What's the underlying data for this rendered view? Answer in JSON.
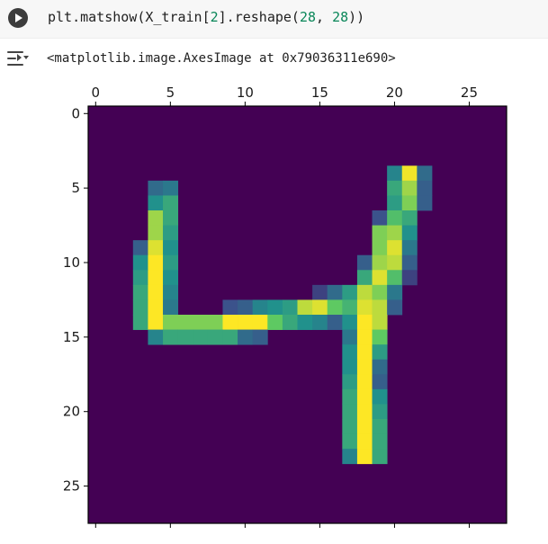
{
  "code_cell": {
    "func": "plt.matshow(X_train[",
    "index": "2",
    "mid": "].reshape(",
    "dim1": "28",
    "sep": ", ",
    "dim2": "28",
    "end": "))"
  },
  "output": {
    "text": "<matplotlib.image.AxesImage at 0x79036311e690>"
  },
  "colors": {
    "accent_number": "#098658",
    "colormap": "viridis"
  },
  "chart_data": {
    "type": "heatmap",
    "title": "",
    "xlabel": "",
    "ylabel": "",
    "xlim": [
      -0.5,
      27.5
    ],
    "ylim": [
      27.5,
      -0.5
    ],
    "x_ticks": [
      0,
      5,
      10,
      15,
      20,
      25
    ],
    "y_ticks": [
      0,
      5,
      10,
      15,
      20,
      25
    ],
    "x_tick_labels": [
      "0",
      "5",
      "10",
      "15",
      "20",
      "25"
    ],
    "y_tick_labels": [
      "0",
      "5",
      "10",
      "15",
      "20",
      "25"
    ],
    "x_axis_position": "top",
    "grid": false,
    "colormap": "viridis",
    "value_range": [
      0,
      1
    ],
    "rows": 28,
    "cols": 28,
    "pixels": [
      [
        4,
        20,
        0.45
      ],
      [
        4,
        21,
        0.98
      ],
      [
        4,
        22,
        0.35
      ],
      [
        5,
        4,
        0.35
      ],
      [
        5,
        5,
        0.4
      ],
      [
        5,
        20,
        0.6
      ],
      [
        5,
        21,
        0.85
      ],
      [
        5,
        22,
        0.3
      ],
      [
        6,
        4,
        0.5
      ],
      [
        6,
        5,
        0.6
      ],
      [
        6,
        20,
        0.55
      ],
      [
        6,
        21,
        0.8
      ],
      [
        6,
        22,
        0.3
      ],
      [
        7,
        4,
        0.85
      ],
      [
        7,
        5,
        0.6
      ],
      [
        7,
        19,
        0.25
      ],
      [
        7,
        20,
        0.7
      ],
      [
        7,
        21,
        0.6
      ],
      [
        8,
        4,
        0.85
      ],
      [
        8,
        5,
        0.55
      ],
      [
        8,
        19,
        0.8
      ],
      [
        8,
        20,
        0.85
      ],
      [
        8,
        21,
        0.5
      ],
      [
        9,
        3,
        0.3
      ],
      [
        9,
        4,
        0.95
      ],
      [
        9,
        5,
        0.5
      ],
      [
        9,
        19,
        0.8
      ],
      [
        9,
        20,
        0.95
      ],
      [
        9,
        21,
        0.4
      ],
      [
        10,
        3,
        0.5
      ],
      [
        10,
        4,
        1.0
      ],
      [
        10,
        5,
        0.55
      ],
      [
        10,
        18,
        0.3
      ],
      [
        10,
        19,
        0.85
      ],
      [
        10,
        20,
        0.9
      ],
      [
        10,
        21,
        0.3
      ],
      [
        11,
        3,
        0.55
      ],
      [
        11,
        4,
        1.0
      ],
      [
        11,
        5,
        0.5
      ],
      [
        11,
        18,
        0.6
      ],
      [
        11,
        19,
        0.95
      ],
      [
        11,
        20,
        0.7
      ],
      [
        11,
        21,
        0.2
      ],
      [
        12,
        3,
        0.6
      ],
      [
        12,
        4,
        1.0
      ],
      [
        12,
        5,
        0.45
      ],
      [
        12,
        15,
        0.2
      ],
      [
        12,
        16,
        0.35
      ],
      [
        12,
        17,
        0.55
      ],
      [
        12,
        18,
        0.9
      ],
      [
        12,
        19,
        0.8
      ],
      [
        12,
        20,
        0.4
      ],
      [
        13,
        3,
        0.6
      ],
      [
        13,
        4,
        1.0
      ],
      [
        13,
        5,
        0.4
      ],
      [
        13,
        9,
        0.25
      ],
      [
        13,
        10,
        0.3
      ],
      [
        13,
        11,
        0.45
      ],
      [
        13,
        12,
        0.5
      ],
      [
        13,
        13,
        0.55
      ],
      [
        13,
        14,
        0.9
      ],
      [
        13,
        15,
        0.95
      ],
      [
        13,
        16,
        0.75
      ],
      [
        13,
        17,
        0.65
      ],
      [
        13,
        18,
        0.95
      ],
      [
        13,
        19,
        0.9
      ],
      [
        13,
        20,
        0.3
      ],
      [
        14,
        3,
        0.6
      ],
      [
        14,
        4,
        1.0
      ],
      [
        14,
        5,
        0.8
      ],
      [
        14,
        6,
        0.8
      ],
      [
        14,
        7,
        0.8
      ],
      [
        14,
        8,
        0.8
      ],
      [
        14,
        9,
        1.0
      ],
      [
        14,
        10,
        1.0
      ],
      [
        14,
        11,
        1.0
      ],
      [
        14,
        12,
        0.75
      ],
      [
        14,
        13,
        0.6
      ],
      [
        14,
        14,
        0.5
      ],
      [
        14,
        15,
        0.45
      ],
      [
        14,
        16,
        0.3
      ],
      [
        14,
        17,
        0.5
      ],
      [
        14,
        18,
        1.0
      ],
      [
        14,
        19,
        0.9
      ],
      [
        15,
        4,
        0.45
      ],
      [
        15,
        5,
        0.6
      ],
      [
        15,
        6,
        0.6
      ],
      [
        15,
        7,
        0.6
      ],
      [
        15,
        8,
        0.6
      ],
      [
        15,
        9,
        0.6
      ],
      [
        15,
        10,
        0.35
      ],
      [
        15,
        11,
        0.3
      ],
      [
        15,
        17,
        0.4
      ],
      [
        15,
        18,
        1.0
      ],
      [
        15,
        19,
        0.75
      ],
      [
        16,
        17,
        0.5
      ],
      [
        16,
        18,
        1.0
      ],
      [
        16,
        19,
        0.55
      ],
      [
        17,
        17,
        0.5
      ],
      [
        17,
        18,
        1.0
      ],
      [
        17,
        19,
        0.35
      ],
      [
        18,
        17,
        0.55
      ],
      [
        18,
        18,
        1.0
      ],
      [
        18,
        19,
        0.3
      ],
      [
        19,
        17,
        0.6
      ],
      [
        19,
        18,
        1.0
      ],
      [
        19,
        19,
        0.5
      ],
      [
        20,
        17,
        0.6
      ],
      [
        20,
        18,
        1.0
      ],
      [
        20,
        19,
        0.55
      ],
      [
        21,
        17,
        0.6
      ],
      [
        21,
        18,
        1.0
      ],
      [
        21,
        19,
        0.6
      ],
      [
        22,
        17,
        0.6
      ],
      [
        22,
        18,
        1.0
      ],
      [
        22,
        19,
        0.6
      ],
      [
        23,
        17,
        0.45
      ],
      [
        23,
        18,
        1.0
      ],
      [
        23,
        19,
        0.6
      ]
    ]
  }
}
